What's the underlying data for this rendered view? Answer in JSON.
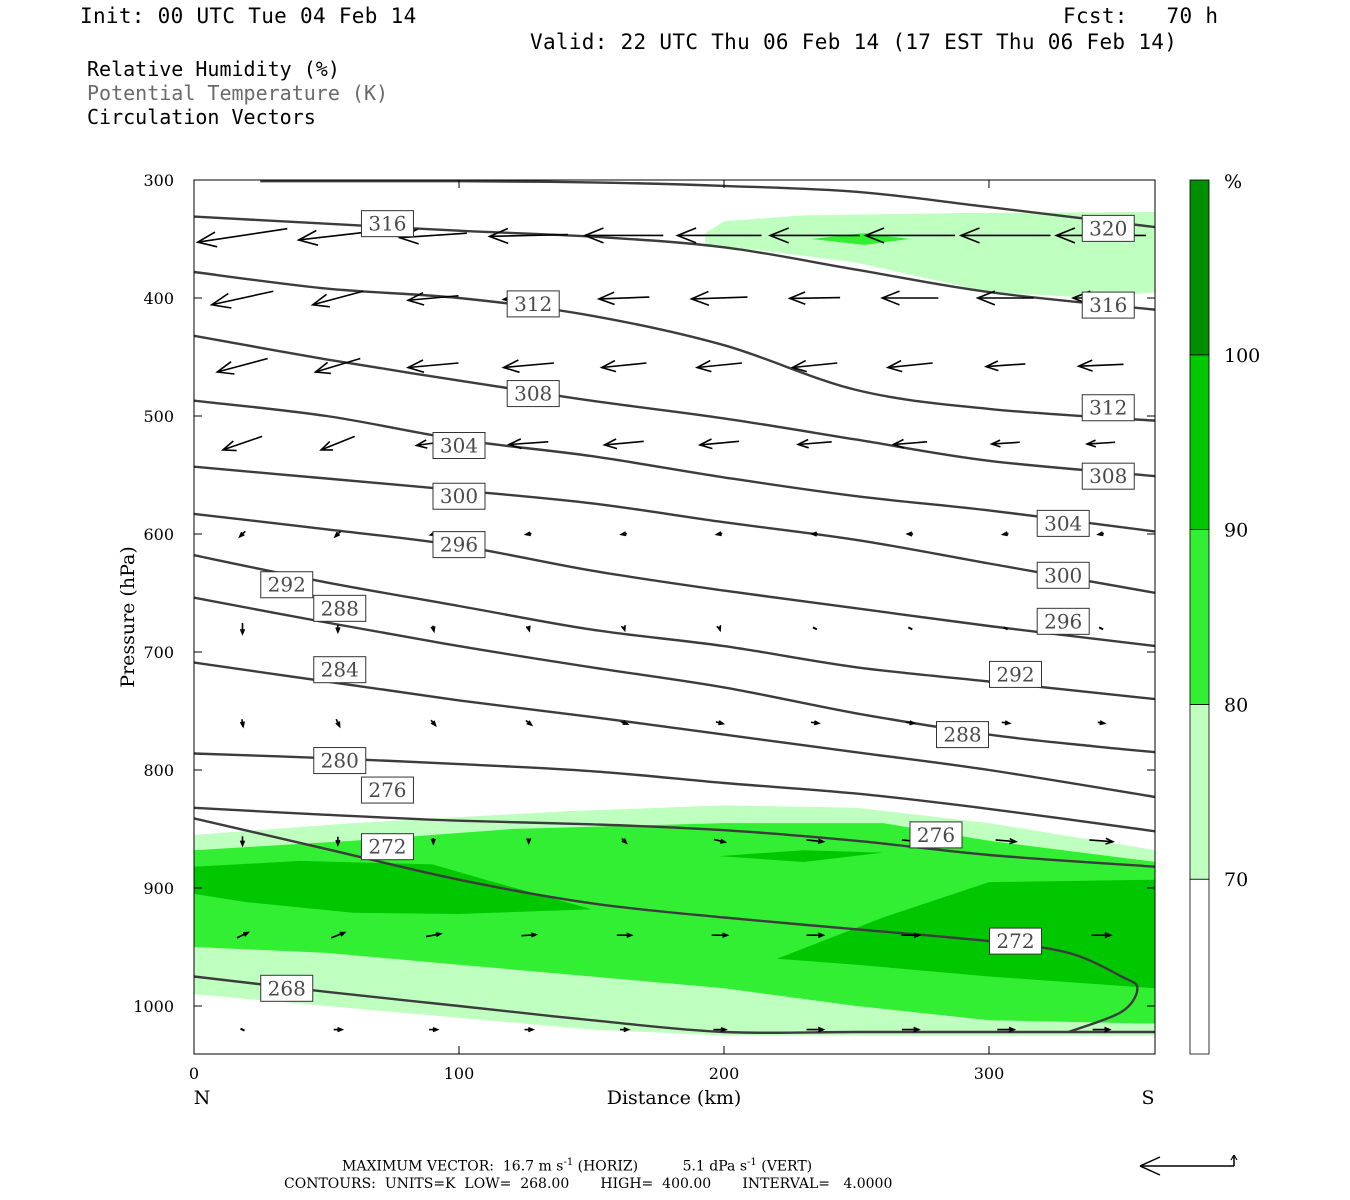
{
  "header": {
    "init": "Init: 00 UTC Tue 04 Feb 14",
    "fcst": "Fcst:   70 h",
    "valid": "Valid: 22 UTC Thu 06 Feb 14 (17 EST Thu 06 Feb 14)"
  },
  "legend": {
    "rh": "Relative Humidity (%)",
    "theta": "Potential Temperature (K)",
    "vectors": "Circulation Vectors"
  },
  "footer": {
    "maxvec_label": "MAXIMUM VECTOR:",
    "maxvec_horiz": "16.7 m s",
    "horiz_exp": "-1",
    "horiz_tag": "(HORIZ)",
    "maxvec_vert": "5.1 dPa s",
    "vert_exp": "-1",
    "vert_tag": "(VERT)",
    "contours_label": "CONTOURS:",
    "units": "UNITS=K",
    "low_label": "LOW=",
    "low": "268.00",
    "high_label": "HIGH=",
    "high": "400.00",
    "interval_label": "INTERVAL=",
    "interval": "4.0000"
  },
  "chart_data": {
    "type": "cross-section",
    "xlabel": "Distance (km)",
    "ylabel": "Pressure (hPa)",
    "xlim": [
      0,
      363
    ],
    "ylim": [
      1040,
      300
    ],
    "y_scale": "linear (pressure increasing downward)",
    "x_ticks": [
      0,
      100,
      200,
      300
    ],
    "y_ticks": [
      300,
      400,
      500,
      600,
      700,
      800,
      900,
      1000
    ],
    "x_end_labels": {
      "left": "N",
      "right": "S"
    },
    "colorbar": {
      "unit": "%",
      "levels": [
        70,
        80,
        90,
        100
      ],
      "colors": [
        "#ffffff",
        "#bfffbf",
        "#33ef33",
        "#00c700",
        "#008f00"
      ]
    },
    "rh_shading": [
      {
        "level": 70,
        "color": "#bfffbf",
        "polygon": [
          [
            193,
            345
          ],
          [
            200,
            335
          ],
          [
            230,
            330
          ],
          [
            290,
            328
          ],
          [
            363,
            327
          ],
          [
            363,
            395
          ],
          [
            340,
            400
          ],
          [
            300,
            395
          ],
          [
            250,
            370
          ],
          [
            215,
            360
          ],
          [
            193,
            355
          ]
        ]
      },
      {
        "level": 70,
        "color": "#bfffbf",
        "polygon": [
          [
            0,
            855
          ],
          [
            60,
            845
          ],
          [
            140,
            835
          ],
          [
            200,
            830
          ],
          [
            250,
            832
          ],
          [
            300,
            845
          ],
          [
            363,
            868
          ],
          [
            363,
            1025
          ],
          [
            300,
            1025
          ],
          [
            200,
            1025
          ],
          [
            150,
            1020
          ],
          [
            100,
            1010
          ],
          [
            50,
            1000
          ],
          [
            0,
            990
          ]
        ]
      },
      {
        "level": 80,
        "color": "#33ef33",
        "polygon": [
          [
            233,
            350
          ],
          [
            253,
            345
          ],
          [
            270,
            350
          ],
          [
            253,
            355
          ]
        ]
      },
      {
        "level": 80,
        "color": "#33ef33",
        "polygon": [
          [
            0,
            868
          ],
          [
            60,
            860
          ],
          [
            120,
            850
          ],
          [
            200,
            845
          ],
          [
            260,
            845
          ],
          [
            300,
            860
          ],
          [
            363,
            878
          ],
          [
            363,
            1015
          ],
          [
            300,
            1012
          ],
          [
            250,
            1000
          ],
          [
            200,
            985
          ],
          [
            150,
            975
          ],
          [
            100,
            965
          ],
          [
            50,
            955
          ],
          [
            0,
            950
          ]
        ]
      },
      {
        "level": 90,
        "color": "#00c700",
        "polygon": [
          [
            0,
            882
          ],
          [
            40,
            877
          ],
          [
            90,
            880
          ],
          [
            110,
            893
          ],
          [
            150,
            918
          ],
          [
            100,
            922
          ],
          [
            60,
            921
          ],
          [
            20,
            912
          ],
          [
            0,
            905
          ]
        ]
      },
      {
        "level": 90,
        "color": "#00c700",
        "polygon": [
          [
            198,
            873
          ],
          [
            230,
            868
          ],
          [
            260,
            870
          ],
          [
            230,
            878
          ]
        ]
      },
      {
        "level": 90,
        "color": "#00c700",
        "polygon": [
          [
            220,
            960
          ],
          [
            260,
            925
          ],
          [
            300,
            895
          ],
          [
            363,
            893
          ],
          [
            363,
            985
          ],
          [
            300,
            975
          ],
          [
            250,
            965
          ]
        ]
      }
    ],
    "theta_contours": [
      {
        "value": 268,
        "x": [
          0,
          50,
          100,
          150,
          200,
          250,
          300,
          340,
          363
        ],
        "p": [
          975,
          988,
          1000,
          1012,
          1022,
          1022,
          1022,
          1022,
          1022
        ],
        "labels": [
          [
            35,
            985
          ]
        ]
      },
      {
        "value": 272,
        "x": [
          0,
          50,
          100,
          150,
          200,
          250,
          300,
          330,
          350,
          356,
          350,
          330
        ],
        "p": [
          841,
          867,
          893,
          913,
          925,
          935,
          945,
          955,
          975,
          985,
          1005,
          1022
        ],
        "labels": [
          [
            73,
            865
          ],
          [
            310,
            945
          ]
        ]
      },
      {
        "value": 276,
        "x": [
          0,
          50,
          100,
          150,
          200,
          250,
          300,
          363
        ],
        "p": [
          832,
          838,
          843,
          846,
          851,
          860,
          872,
          882
        ],
        "labels": [
          [
            73,
            817
          ],
          [
            280,
            855
          ]
        ]
      },
      {
        "value": 280,
        "x": [
          0,
          50,
          100,
          150,
          200,
          250,
          300,
          363
        ],
        "p": [
          786,
          790,
          795,
          801,
          811,
          820,
          833,
          852
        ],
        "labels": [
          [
            55,
            792
          ]
        ]
      },
      {
        "value": 284,
        "x": [
          0,
          50,
          100,
          150,
          200,
          250,
          300,
          363
        ],
        "p": [
          709,
          725,
          741,
          755,
          770,
          785,
          800,
          823
        ],
        "labels": [
          [
            55,
            715
          ]
        ]
      },
      {
        "value": 288,
        "x": [
          0,
          50,
          100,
          150,
          200,
          250,
          300,
          340,
          363
        ],
        "p": [
          654,
          675,
          695,
          713,
          730,
          752,
          770,
          780,
          785
        ],
        "labels": [
          [
            55,
            663
          ],
          [
            290,
            770
          ]
        ]
      },
      {
        "value": 292,
        "x": [
          0,
          50,
          100,
          150,
          200,
          250,
          300,
          363
        ],
        "p": [
          618,
          641,
          661,
          681,
          695,
          713,
          725,
          740
        ],
        "labels": [
          [
            35,
            643
          ],
          [
            310,
            719
          ]
        ]
      },
      {
        "value": 296,
        "x": [
          0,
          50,
          100,
          150,
          200,
          250,
          300,
          363
        ],
        "p": [
          583,
          596,
          610,
          631,
          648,
          663,
          678,
          695
        ],
        "labels": [
          [
            100,
            609
          ],
          [
            328,
            674
          ]
        ]
      },
      {
        "value": 300,
        "x": [
          0,
          50,
          100,
          150,
          200,
          250,
          300,
          363
        ],
        "p": [
          543,
          553,
          563,
          574,
          590,
          605,
          625,
          650
        ],
        "labels": [
          [
            100,
            568
          ],
          [
            328,
            635
          ]
        ]
      },
      {
        "value": 304,
        "x": [
          0,
          50,
          100,
          150,
          200,
          250,
          300,
          363
        ],
        "p": [
          487,
          500,
          520,
          534,
          552,
          568,
          580,
          598
        ],
        "labels": [
          [
            100,
            525
          ],
          [
            328,
            591
          ]
        ]
      },
      {
        "value": 308,
        "x": [
          0,
          50,
          100,
          150,
          200,
          250,
          300,
          363
        ],
        "p": [
          432,
          452,
          470,
          487,
          502,
          520,
          538,
          551
        ],
        "labels": [
          [
            128,
            481
          ],
          [
            345,
            551
          ]
        ]
      },
      {
        "value": 312,
        "x": [
          0,
          50,
          100,
          150,
          200,
          250,
          300,
          363
        ],
        "p": [
          378,
          392,
          400,
          415,
          440,
          478,
          494,
          504
        ],
        "labels": [
          [
            128,
            405
          ],
          [
            345,
            493
          ]
        ]
      },
      {
        "value": 316,
        "x": [
          0,
          50,
          100,
          150,
          200,
          250,
          300,
          363
        ],
        "p": [
          331,
          337,
          343,
          348,
          357,
          376,
          395,
          410
        ],
        "labels": [
          [
            73,
            337
          ],
          [
            345,
            406
          ]
        ]
      },
      {
        "value": 320,
        "x": [
          25,
          100,
          150,
          200,
          250,
          300,
          363
        ],
        "p": [
          301,
          301,
          302,
          305,
          310,
          323,
          340
        ],
        "labels": [
          [
            345,
            341
          ]
        ]
      }
    ],
    "vectors_grid": {
      "x": [
        10,
        46,
        82,
        118,
        154,
        190,
        226,
        262,
        298,
        334
      ],
      "levels": [
        {
          "p": 347,
          "u": [
            -16,
            -14,
            -12,
            -14,
            -14,
            -15,
            -16,
            -16,
            -16,
            -16
          ],
          "w": [
            1.5,
            1,
            0.5,
            0.2,
            0,
            0,
            0,
            0,
            0,
            0
          ]
        },
        {
          "p": 400,
          "u": [
            -11,
            -9,
            -9,
            -9,
            -9,
            -10,
            -9,
            -10,
            -10,
            -10
          ],
          "w": [
            1.5,
            1.5,
            0.5,
            0.3,
            0.2,
            0.2,
            0.1,
            0,
            0,
            0
          ]
        },
        {
          "p": 457,
          "u": [
            -9,
            -8,
            -9,
            -9,
            -8,
            -8,
            -8,
            -8,
            -7,
            -8
          ],
          "w": [
            1.5,
            1.5,
            0.5,
            0.5,
            0.5,
            0.5,
            0.5,
            0.5,
            0.3,
            0.2
          ]
        },
        {
          "p": 523,
          "u": [
            -7,
            -6,
            -6,
            -7,
            -7,
            -7,
            -6,
            -6,
            -5,
            -5
          ],
          "w": [
            1.5,
            1.5,
            0.5,
            0.3,
            0.4,
            0.4,
            0.3,
            0.3,
            0.2,
            0.2
          ]
        },
        {
          "p": 600,
          "u": [
            -1,
            -1,
            -1,
            -1,
            -1,
            -1,
            -1,
            -1,
            -1,
            -1
          ],
          "w": [
            0.6,
            0.6,
            0.2,
            0.1,
            0.1,
            0.1,
            0,
            0,
            0.1,
            0.1
          ]
        },
        {
          "p": 680,
          "u": [
            0,
            0,
            0.2,
            0.2,
            0.2,
            0.2,
            0.2,
            0.2,
            0.2,
            0.2
          ],
          "w": [
            1.2,
            0.8,
            0.6,
            0.5,
            0.4,
            0.4,
            0.3,
            0.3,
            0.3,
            0.3
          ]
        },
        {
          "p": 760,
          "u": [
            0.2,
            0.6,
            0.8,
            1,
            1.2,
            1.3,
            1.4,
            1.4,
            1.4,
            1.2
          ],
          "w": [
            0.8,
            0.8,
            0.6,
            0.5,
            0.3,
            0.2,
            0.1,
            0.1,
            0.1,
            0.1
          ]
        },
        {
          "p": 860,
          "u": [
            0,
            0,
            0,
            0,
            0.8,
            2,
            3,
            3,
            3.6,
            4.2
          ],
          "w": [
            1,
            0.9,
            0.6,
            0.5,
            0.5,
            0.3,
            0.2,
            0.2,
            0.2,
            0.2
          ]
        },
        {
          "p": 940,
          "u": [
            2,
            2.4,
            2.6,
            2.6,
            2.6,
            2.8,
            3,
            3.2,
            3.4,
            3.4
          ],
          "w": [
            -0.6,
            -0.6,
            -0.3,
            -0.1,
            0,
            0,
            0,
            0,
            0,
            0
          ]
        },
        {
          "p": 1020,
          "u": [
            0,
            1.5,
            1.5,
            1.5,
            1.5,
            2.2,
            3,
            3,
            3,
            3
          ],
          "w": [
            0,
            0,
            0,
            0,
            0,
            0,
            0,
            0,
            0,
            0
          ]
        }
      ]
    }
  }
}
